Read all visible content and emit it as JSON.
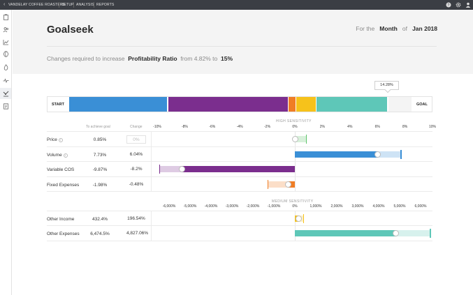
{
  "topbar": {
    "back_icon": "chevron-left-icon",
    "crumbs": [
      "VANDELAY COFFEE ROASTERS",
      "SETUP",
      "ANALYSIS",
      "REPORTS"
    ],
    "icons": [
      "help-icon",
      "gear-icon",
      "user-icon"
    ]
  },
  "sidebar": {
    "icons": [
      "clipboard-icon",
      "people-icon",
      "line-chart-icon",
      "coffee-bean-icon",
      "fire-icon",
      "activity-icon",
      "goalseek-icon",
      "document-icon"
    ],
    "active": "goalseek-icon"
  },
  "page": {
    "title": "Goalseek",
    "period_prefix": "For the",
    "period_unit": "Month",
    "period_of": "of",
    "period_value": "Jan 2018",
    "goal_prefix": "Changes required to increase",
    "goal_metric": "Profitability Ratio",
    "goal_from": "from 4.82% to",
    "goal_target": "15%"
  },
  "waterfall": {
    "start_label": "START",
    "goal_label": "GOAL",
    "badge": "14.28%",
    "colors": [
      "#3a8fd6",
      "#7b2e8e",
      "#f07d25",
      "#f6c21b",
      "#5ec7b8",
      "#f4f4f4"
    ]
  },
  "high": {
    "section_title": "HIGH SENSITIVITY",
    "col_goal": "To achieve goal",
    "col_change": "Change",
    "ticks": [
      "-10%",
      "-8%",
      "-6%",
      "-4%",
      "-2%",
      "0%",
      "2%",
      "4%",
      "6%",
      "8%",
      "10%"
    ],
    "rows": [
      {
        "label": "Price",
        "info": true,
        "goal": "0.85%",
        "change": "0%",
        "faded": true,
        "color": "#5ec46b",
        "start": 0,
        "end": 0.85
      },
      {
        "label": "Volume",
        "info": true,
        "goal": "7.73%",
        "change": "6.04%",
        "faded": false,
        "color": "#3a8fd6",
        "start": 0,
        "end": 7.73,
        "solid_end": 6.04
      },
      {
        "label": "Variable COS",
        "info": false,
        "goal": "-9.87%",
        "change": "-8.2%",
        "faded": false,
        "color": "#7b2e8e",
        "start": -9.87,
        "end": 0,
        "solid_start": -8.2
      },
      {
        "label": "Fixed Expenses",
        "info": false,
        "goal": "-1.98%",
        "change": "-0.48%",
        "faded": false,
        "color": "#f07d25",
        "start": -1.98,
        "end": 0,
        "solid_start": -0.48
      }
    ]
  },
  "medium": {
    "section_title": "MEDIUM SENSITIVITY",
    "ticks": [
      "-6,000%",
      "-5,000%",
      "-4,000%",
      "-3,000%",
      "-2,000%",
      "-1,000%",
      "0%",
      "1,000%",
      "2,000%",
      "3,000%",
      "4,000%",
      "5,000%",
      "6,000%"
    ],
    "rows": [
      {
        "label": "Other Income",
        "goal": "432.4%",
        "change": "196.54%",
        "color": "#f6c21b",
        "start": 0,
        "end": 432.4,
        "solid_end": 196.54
      },
      {
        "label": "Other Expenses",
        "goal": "6,474.5%",
        "change": "4,827.06%",
        "color": "#5ec7b8",
        "start": 0,
        "end": 6474.5,
        "solid_end": 4827.06
      }
    ]
  }
}
